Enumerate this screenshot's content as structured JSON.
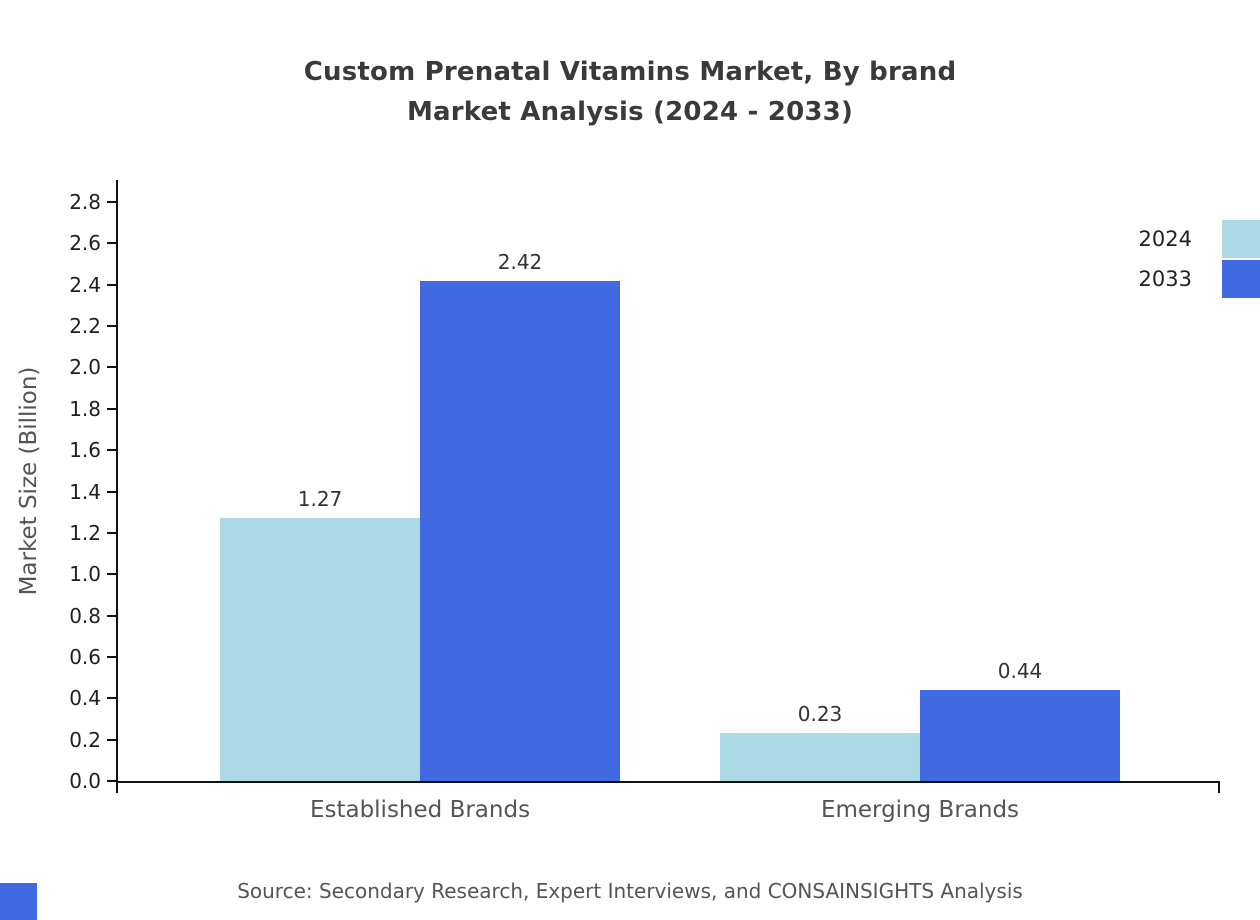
{
  "chart_data": {
    "type": "bar",
    "title": "Custom Prenatal Vitamins Market, By brand Market Analysis (2024 - 2033)",
    "title_lines": [
      "Custom Prenatal Vitamins Market, By brand",
      "Market Analysis (2024 - 2033)"
    ],
    "categories": [
      "Established Brands",
      "Emerging Brands"
    ],
    "series": [
      {
        "name": "2024",
        "color": "#add8e6",
        "values": [
          1.27,
          0.23
        ]
      },
      {
        "name": "2033",
        "color": "#4169e1",
        "values": [
          2.42,
          0.44
        ]
      }
    ],
    "xlabel": "",
    "ylabel": "Market Size (Billion)",
    "ylim": [
      0,
      2.8
    ],
    "ytick_step": 0.2,
    "grid": false,
    "legend_position": "right",
    "value_label_decimals": 2
  },
  "footer": {
    "source_text": "Source: Secondary Research, Expert Interviews, and CONSAINSIGHTS Analysis"
  },
  "accent": {
    "corner_color": "#4169e1"
  }
}
